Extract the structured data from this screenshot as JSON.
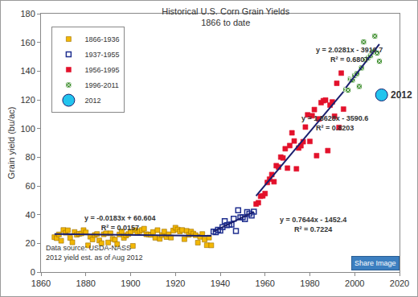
{
  "chart_data": {
    "type": "scatter",
    "title": "Historical U.S. Corn Grain Yields\n1866 to date",
    "y_label": "Grain yield (bu/ac)",
    "xlim": [
      1860,
      2020
    ],
    "xticks": [
      1860,
      1880,
      1900,
      1920,
      1940,
      1960,
      1980,
      2000,
      2020
    ],
    "ylim": [
      0,
      180
    ],
    "yticks": [
      0,
      20,
      40,
      60,
      80,
      100,
      120,
      140,
      160,
      180
    ],
    "grid": false,
    "legend": "upper left",
    "series": [
      {
        "name": "1866-1936",
        "type": "scatter",
        "color": "#f2b705",
        "marker": "square",
        "x": [
          1866,
          1867,
          1868,
          1869,
          1870,
          1871,
          1872,
          1873,
          1874,
          1875,
          1876,
          1877,
          1878,
          1879,
          1880,
          1881,
          1882,
          1883,
          1884,
          1885,
          1886,
          1887,
          1888,
          1889,
          1890,
          1891,
          1892,
          1893,
          1894,
          1895,
          1896,
          1897,
          1898,
          1899,
          1900,
          1901,
          1902,
          1903,
          1904,
          1905,
          1906,
          1907,
          1908,
          1909,
          1910,
          1911,
          1912,
          1913,
          1914,
          1915,
          1916,
          1917,
          1918,
          1919,
          1920,
          1921,
          1922,
          1923,
          1924,
          1925,
          1926,
          1927,
          1928,
          1929,
          1930,
          1931,
          1932,
          1933,
          1934,
          1935,
          1936
        ],
        "values": [
          24.3,
          23.6,
          26.2,
          21.8,
          29.3,
          27.4,
          29.1,
          23.8,
          20.7,
          27.9,
          26.0,
          26.6,
          26.9,
          29.2,
          27.6,
          18.6,
          24.6,
          22.7,
          25.8,
          26.5,
          22.0,
          20.1,
          26.3,
          27.0,
          20.6,
          27.0,
          23.1,
          22.5,
          19.4,
          26.2,
          28.2,
          23.8,
          25.5,
          26.5,
          28.1,
          18.2,
          29.2,
          27.3,
          28.5,
          29.3,
          30.2,
          26.3,
          26.2,
          25.9,
          27.9,
          23.9,
          29.2,
          23.1,
          25.8,
          28.2,
          24.4,
          26.3,
          24.0,
          28.9,
          30.9,
          29.6,
          28.3,
          29.3,
          22.9,
          28.7,
          25.9,
          28.2,
          26.8,
          25.7,
          20.5,
          24.5,
          26.5,
          22.6,
          18.7,
          24.0,
          18.6
        ]
      },
      {
        "name": "1937-1955",
        "type": "scatter",
        "color": "#1f2f8f",
        "marker": "square-open",
        "x": [
          1937,
          1938,
          1939,
          1940,
          1941,
          1942,
          1943,
          1944,
          1945,
          1946,
          1947,
          1948,
          1949,
          1950,
          1951,
          1952,
          1953,
          1954,
          1955
        ],
        "values": [
          28.2,
          27.7,
          29.4,
          28.9,
          31.2,
          35.4,
          32.6,
          33.0,
          33.1,
          37.2,
          28.6,
          43.0,
          38.2,
          38.2,
          36.9,
          41.8,
          40.7,
          39.4,
          42.0
        ]
      },
      {
        "name": "1956-1995",
        "type": "scatter",
        "color": "#e3112b",
        "marker": "square",
        "x": [
          1956,
          1957,
          1958,
          1959,
          1960,
          1961,
          1962,
          1963,
          1964,
          1965,
          1966,
          1967,
          1968,
          1969,
          1970,
          1971,
          1972,
          1973,
          1974,
          1975,
          1976,
          1977,
          1978,
          1979,
          1980,
          1981,
          1982,
          1983,
          1984,
          1985,
          1986,
          1987,
          1988,
          1989,
          1990,
          1991,
          1992,
          1993,
          1994,
          1995
        ],
        "values": [
          47.4,
          48.3,
          52.8,
          53.1,
          54.7,
          62.4,
          64.7,
          67.9,
          62.9,
          74.1,
          73.1,
          80.1,
          79.5,
          85.9,
          72.4,
          88.1,
          97.0,
          91.3,
          71.9,
          86.4,
          88.0,
          90.8,
          101.0,
          109.5,
          91.0,
          108.9,
          113.2,
          81.1,
          106.7,
          118.0,
          119.4,
          119.8,
          84.6,
          116.3,
          118.5,
          108.6,
          131.5,
          100.7,
          138.6,
          113.5
        ]
      },
      {
        "name": "1996-2011",
        "type": "scatter",
        "color": "#3f8f2f",
        "marker": "square-x",
        "x": [
          1996,
          1997,
          1998,
          1999,
          2000,
          2001,
          2002,
          2003,
          2004,
          2005,
          2006,
          2007,
          2008,
          2009,
          2010,
          2011
        ],
        "values": [
          127.1,
          126.7,
          134.4,
          133.8,
          136.9,
          138.2,
          129.3,
          142.2,
          160.3,
          147.9,
          149.1,
          150.7,
          153.3,
          164.4,
          152.6,
          146.8
        ]
      },
      {
        "name": "2012",
        "type": "scatter",
        "color": "#22c4ee",
        "marker": "circle",
        "x": [
          2012
        ],
        "values": [
          123.4
        ]
      },
      {
        "type": "line",
        "color": "#1a1f6e",
        "line_style": "solid",
        "x": [
          1866,
          1936
        ],
        "values": [
          26.46,
          25.18
        ]
      },
      {
        "type": "line",
        "color": "#1a1f6e",
        "line_style": "solid",
        "x": [
          1937,
          1955
        ],
        "values": [
          28.2,
          42.0
        ]
      },
      {
        "type": "line",
        "color": "#1a1f6e",
        "line_style": "solid",
        "x": [
          1956,
          1995
        ],
        "values": [
          53.0,
          125.7
        ]
      },
      {
        "type": "line",
        "color": "#1a1f6e",
        "line_style": "solid",
        "x": [
          1996,
          2011
        ],
        "values": [
          128.4,
          158.8
        ]
      }
    ],
    "annotations": [
      {
        "text": "y = -0.0183x + 60.604\nR² = 0.0157"
      },
      {
        "text": "y = 0.7644x - 1452.4\nR² = 0.7224"
      },
      {
        "text": "y = 1.8628x - 3590.6\nR² = 0.8203"
      },
      {
        "text": "y = 2.0281x - 3919.7\nR² = 0.6807"
      },
      {
        "text": "2012"
      },
      {
        "text": "Data source: USDA-NASS\n2012 yield est. as of Aug 2012"
      },
      {
        "text": "Share Image"
      }
    ]
  }
}
